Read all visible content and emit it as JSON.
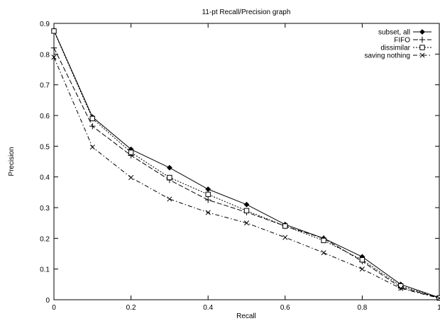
{
  "chart_data": {
    "type": "line",
    "title": "11-pt Recall/Precision graph",
    "xlabel": "Recall",
    "ylabel": "Precision",
    "xlim": [
      0,
      1
    ],
    "ylim": [
      0,
      0.9
    ],
    "grid": false,
    "legend_position": "top-right",
    "x_tick_labels": [
      "0",
      "0.2",
      "0.4",
      "0.6",
      "0.8",
      "1"
    ],
    "y_tick_labels": [
      "0",
      "0.1",
      "0.2",
      "0.3",
      "0.4",
      "0.5",
      "0.6",
      "0.7",
      "0.8",
      "0.9"
    ],
    "x": [
      0,
      0.1,
      0.2,
      0.3,
      0.4,
      0.5,
      0.6,
      0.7,
      0.8,
      0.9,
      1.0
    ],
    "series": [
      {
        "name": "subset, all",
        "marker": "diamond",
        "dash": "solid",
        "values": [
          0.877,
          0.595,
          0.49,
          0.43,
          0.36,
          0.31,
          0.245,
          0.2,
          0.14,
          0.05,
          0.007
        ]
      },
      {
        "name": "FIFO",
        "marker": "plus",
        "dash": "longdash",
        "values": [
          0.82,
          0.565,
          0.47,
          0.39,
          0.325,
          0.285,
          0.24,
          0.2,
          0.125,
          0.04,
          0.006
        ]
      },
      {
        "name": "dissimilar",
        "marker": "square",
        "dash": "dotted",
        "values": [
          0.875,
          0.59,
          0.48,
          0.398,
          0.343,
          0.29,
          0.24,
          0.193,
          0.13,
          0.045,
          0.006
        ]
      },
      {
        "name": "saving nothing",
        "marker": "cross",
        "dash": "dashdot",
        "values": [
          0.79,
          0.497,
          0.398,
          0.328,
          0.284,
          0.25,
          0.203,
          0.153,
          0.1,
          0.037,
          0.005
        ]
      }
    ]
  }
}
